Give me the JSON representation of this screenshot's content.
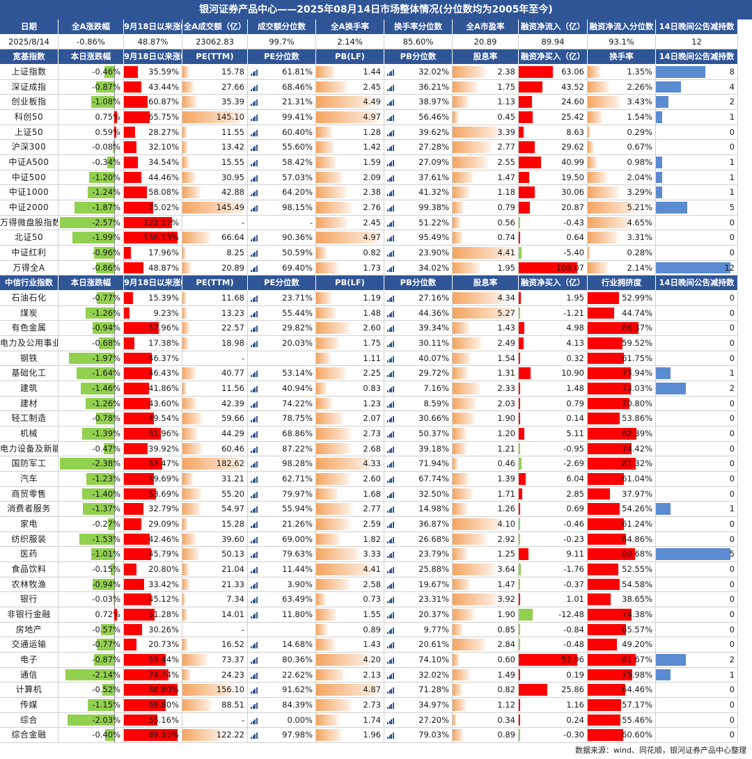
{
  "title": "银河证券产品中心——2025年08月14日市场整体情况(分位数均为2005年至今)",
  "summary": {
    "headers": [
      "日期",
      "全A涨跌幅",
      "9月18日以来涨幅",
      "全A成交额（亿）",
      "成交额分位数",
      "全A换手率",
      "换手率分位数",
      "全A市盈率",
      "融资净流入（亿）",
      "融资净流入分位数",
      "14日晚间公告减持数"
    ],
    "values": [
      "2025/8/14",
      "-0.86%",
      "48.87%",
      "23062.83",
      "99.7%",
      "2.14%",
      "85.60%",
      "20.89",
      "89.94",
      "93.1%",
      "12"
    ]
  },
  "broad": {
    "headers": [
      "宽基指数",
      "本日涨跌幅",
      "9月18日以来涨幅",
      "PE(TTM)",
      "PE分位数",
      "PB(LF)",
      "PB分位数",
      "股息率",
      "融资净买入（亿）",
      "换手率",
      "14日晚间公告减持数"
    ],
    "rows": [
      [
        "上证指数",
        "-0.46%",
        "35.59%",
        "15.78",
        "61.81%",
        "1.44",
        "32.02%",
        "2.38",
        "63.06",
        "1.35%",
        "8"
      ],
      [
        "深证成指",
        "-0.87%",
        "43.44%",
        "27.66",
        "68.46%",
        "2.45",
        "36.21%",
        "1.75",
        "43.52",
        "2.26%",
        "4"
      ],
      [
        "创业板指",
        "-1.08%",
        "60.87%",
        "35.39",
        "21.31%",
        "4.49",
        "38.97%",
        "1.13",
        "24.60",
        "3.43%",
        "2"
      ],
      [
        "科创50",
        "0.75%",
        "65.75%",
        "145.10",
        "99.41%",
        "4.97",
        "56.46%",
        "0.45",
        "25.42",
        "1.54%",
        "1"
      ],
      [
        "上证50",
        "0.59%",
        "28.27%",
        "11.55",
        "60.40%",
        "1.28",
        "39.62%",
        "3.39",
        "8.63",
        "0.29%",
        "0"
      ],
      [
        "沪深300",
        "-0.08%",
        "32.10%",
        "13.42",
        "55.60%",
        "1.42",
        "27.28%",
        "2.77",
        "29.62",
        "0.67%",
        "0"
      ],
      [
        "中证A500",
        "-0.34%",
        "34.54%",
        "15.55",
        "58.42%",
        "1.59",
        "27.09%",
        "2.55",
        "40.99",
        "0.98%",
        "1"
      ],
      [
        "中证500",
        "-1.20%",
        "44.46%",
        "30.95",
        "57.03%",
        "2.09",
        "37.61%",
        "1.47",
        "19.50",
        "2.04%",
        "1"
      ],
      [
        "中证1000",
        "-1.24%",
        "58.08%",
        "42.88",
        "64.20%",
        "2.38",
        "41.32%",
        "1.18",
        "30.06",
        "3.29%",
        "1"
      ],
      [
        "中证2000",
        "-1.87%",
        "75.02%",
        "145.49",
        "98.15%",
        "2.76",
        "99.38%",
        "0.79",
        "20.87",
        "5.21%",
        "5"
      ],
      [
        "万得微盘股指数",
        "-2.57%",
        "122.17%",
        "-",
        "-",
        "2.45",
        "51.22%",
        "0.56",
        "-0.43",
        "4.65%",
        "0"
      ],
      [
        "北证50",
        "-1.99%",
        "136.13%",
        "66.64",
        "90.36%",
        "4.97",
        "95.49%",
        "0.74",
        "0.64",
        "3.31%",
        "0"
      ],
      [
        "中证红利",
        "-0.96%",
        "17.96%",
        "8.25",
        "50.59%",
        "0.82",
        "23.90%",
        "4.41",
        "-5.40",
        "0.28%",
        "0"
      ],
      [
        "万得全A",
        "-0.86%",
        "48.87%",
        "20.89",
        "69.40%",
        "1.73",
        "34.02%",
        "1.95",
        "108.07",
        "2.14%",
        "12"
      ]
    ]
  },
  "industry": {
    "headers": [
      "中信行业指数",
      "本日涨跌幅",
      "9月18日以来涨幅",
      "PE(TTM)",
      "PE分位数",
      "PB(LF)",
      "PB分位数",
      "股息率",
      "融资净买入（亿）",
      "行业拥挤度",
      "14日晚间公告减持数"
    ],
    "rows": [
      [
        "石油石化",
        "-0.77%",
        "15.39%",
        "11.68",
        "23.71%",
        "1.19",
        "27.16%",
        "4.34",
        "1.95",
        "52.99%",
        "0"
      ],
      [
        "煤炭",
        "-1.26%",
        "9.23%",
        "13.23",
        "55.44%",
        "1.48",
        "44.36%",
        "5.27",
        "-1.21",
        "44.74%",
        "0"
      ],
      [
        "有色金属",
        "-0.94%",
        "57.96%",
        "22.57",
        "29.82%",
        "2.60",
        "39.34%",
        "1.43",
        "4.98",
        "86.37%",
        "0"
      ],
      [
        "电力及公用事业",
        "-0.68%",
        "17.38%",
        "18.98",
        "20.03%",
        "1.75",
        "30.11%",
        "2.49",
        "4.13",
        "59.52%",
        "0"
      ],
      [
        "钢铁",
        "-1.97%",
        "46.37%",
        "-",
        "",
        "1.11",
        "40.07%",
        "1.54",
        "0.32",
        "61.75%",
        "0"
      ],
      [
        "基础化工",
        "-1.64%",
        "46.43%",
        "40.77",
        "53.14%",
        "2.25",
        "29.72%",
        "1.31",
        "10.90",
        "73.94%",
        "1"
      ],
      [
        "建筑",
        "-1.46%",
        "41.86%",
        "11.56",
        "40.94%",
        "0.83",
        "7.16%",
        "2.33",
        "1.48",
        "73.03%",
        "2"
      ],
      [
        "建材",
        "-1.26%",
        "43.60%",
        "42.39",
        "74.22%",
        "1.23",
        "8.59%",
        "2.03",
        "0.79",
        "70.80%",
        "0"
      ],
      [
        "轻工制造",
        "-0.78%",
        "49.54%",
        "59.66",
        "78.75%",
        "2.07",
        "30.66%",
        "1.90",
        "0.14",
        "53.86%",
        "0"
      ],
      [
        "机械",
        "-1.39%",
        "61.96%",
        "44.29",
        "68.86%",
        "2.73",
        "50.37%",
        "1.20",
        "5.11",
        "82.39%",
        "0"
      ],
      [
        "电力设备及新能源",
        "-0.47%",
        "39.92%",
        "60.46",
        "87.22%",
        "2.68",
        "39.18%",
        "1.21",
        "-0.95",
        "74.42%",
        "0"
      ],
      [
        "国防军工",
        "-2.38%",
        "63.47%",
        "182.62",
        "98.28%",
        "4.33",
        "71.94%",
        "0.46",
        "-2.69",
        "81.32%",
        "0"
      ],
      [
        "汽车",
        "-1.23%",
        "49.69%",
        "31.21",
        "62.71%",
        "2.60",
        "67.74%",
        "1.39",
        "6.04",
        "61.04%",
        "0"
      ],
      [
        "商贸零售",
        "-1.40%",
        "53.69%",
        "55.20",
        "79.97%",
        "1.68",
        "32.50%",
        "1.71",
        "2.85",
        "37.97%",
        "0"
      ],
      [
        "消费者服务",
        "-1.37%",
        "32.79%",
        "54.97",
        "55.94%",
        "2.77",
        "14.98%",
        "1.26",
        "0.69",
        "54.26%",
        "1"
      ],
      [
        "家电",
        "-0.27%",
        "29.09%",
        "15.28",
        "21.26%",
        "2.59",
        "36.87%",
        "4.10",
        "-0.46",
        "61.24%",
        "0"
      ],
      [
        "纺织服装",
        "-1.53%",
        "42.46%",
        "39.60",
        "69.00%",
        "1.82",
        "26.68%",
        "2.92",
        "-0.23",
        "64.86%",
        "0"
      ],
      [
        "医药",
        "-1.01%",
        "45.79%",
        "50.13",
        "79.63%",
        "3.33",
        "23.79%",
        "1.25",
        "9.11",
        "80.68%",
        "5"
      ],
      [
        "食品饮料",
        "-0.15%",
        "20.80%",
        "21.04",
        "11.44%",
        "4.41",
        "25.88%",
        "3.64",
        "-1.76",
        "52.55%",
        "0"
      ],
      [
        "农林牧渔",
        "-0.94%",
        "33.42%",
        "21.33",
        "3.90%",
        "2.58",
        "19.67%",
        "1.47",
        "-0.37",
        "54.58%",
        "0"
      ],
      [
        "银行",
        "-0.03%",
        "45.12%",
        "7.34",
        "63.49%",
        "0.73",
        "23.31%",
        "3.92",
        "1.01",
        "38.65%",
        "0"
      ],
      [
        "非银行金融",
        "0.72%",
        "51.28%",
        "14.01",
        "11.80%",
        "1.55",
        "20.37%",
        "1.90",
        "-12.48",
        "74.38%",
        "0"
      ],
      [
        "房地产",
        "-0.57%",
        "30.26%",
        "-",
        "",
        "0.89",
        "9.77%",
        "0.85",
        "-0.84",
        "65.57%",
        "0"
      ],
      [
        "交通运输",
        "-0.77%",
        "20.73%",
        "16.52",
        "14.68%",
        "1.43",
        "20.61%",
        "2.84",
        "-0.48",
        "49.20%",
        "0"
      ],
      [
        "电子",
        "-0.87%",
        "69.44%",
        "73.37",
        "80.36%",
        "4.20",
        "74.10%",
        "0.60",
        "52.96",
        "81.67%",
        "2"
      ],
      [
        "通信",
        "-2.14%",
        "74.74%",
        "24.23",
        "22.62%",
        "2.13",
        "32.02%",
        "1.49",
        "0.19",
        "75.98%",
        "1"
      ],
      [
        "计算机",
        "-0.52%",
        "88.80%",
        "156.10",
        "91.62%",
        "4.87",
        "71.28%",
        "0.82",
        "25.86",
        "64.46%",
        "0"
      ],
      [
        "传媒",
        "-1.15%",
        "69.80%",
        "88.51",
        "84.39%",
        "2.73",
        "34.97%",
        "1.12",
        "1.16",
        "57.17%",
        "0"
      ],
      [
        "综合",
        "-2.03%",
        "55.16%",
        "-",
        "0.00%",
        "1.74",
        "27.20%",
        "0.34",
        "0.24",
        "55.46%",
        "0"
      ],
      [
        "综合金融",
        "-0.40%",
        "89.35%",
        "122.22",
        "97.98%",
        "1.96",
        "79.03%",
        "0.89",
        "-0.30",
        "60.60%",
        "0"
      ]
    ]
  },
  "footer": "数据来源：wind、同花顺，银河证券产品中心整理",
  "colors": {
    "header_bg": "#2f5596",
    "positive_bar": "#ff0000",
    "negative_bar": "#92d050",
    "count_bar": "#5b8bd0",
    "grad_bar": "#f4a460",
    "quartile_icon": "#2f5596"
  }
}
